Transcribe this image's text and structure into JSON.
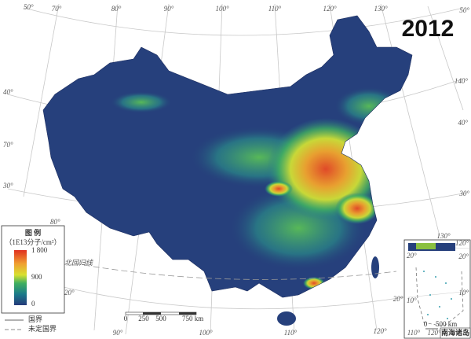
{
  "title": "2012",
  "graticule_labels": {
    "top": [
      "50°",
      "70°",
      "80°",
      "90°",
      "100°",
      "110°",
      "120°",
      "130°"
    ],
    "right": [
      "50°",
      "140°",
      "40°",
      "30°"
    ],
    "left": [
      "40°",
      "70°",
      "30°",
      "80°",
      "20°"
    ],
    "bottom": [
      "90°",
      "100°",
      "110°",
      "120°",
      "20°"
    ]
  },
  "tropic_label": "北回归线",
  "legend": {
    "title": "图 例",
    "unit": "（1E13分子/cm²）",
    "colorbar_labels": [
      "1 800",
      "900",
      "0"
    ],
    "lines": [
      "国界",
      "未定国界"
    ]
  },
  "scale_bar": {
    "labels": [
      "0",
      "250",
      "500",
      "750 km"
    ]
  },
  "inset": {
    "title": "南海诸岛",
    "labels": [
      "130°",
      "120°",
      "20°",
      "20°",
      "10°",
      "10°",
      "110°",
      "120°"
    ],
    "scale_labels": [
      "0",
      "500 km"
    ]
  }
}
